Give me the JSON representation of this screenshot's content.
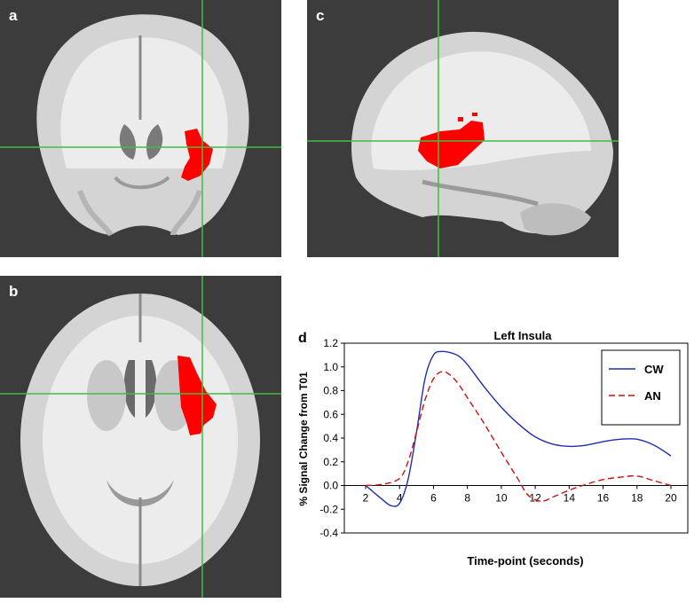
{
  "panels": {
    "a": {
      "label": "a"
    },
    "b": {
      "label": "b"
    },
    "c": {
      "label": "c"
    },
    "d": {
      "label": "d"
    }
  },
  "colors": {
    "background": "#3c3c3c",
    "crosshair": "#3fbf3f",
    "activation": "#ff0000",
    "cw_line": "#1f2fb0",
    "an_line": "#d01010"
  },
  "chart_data": {
    "type": "line",
    "title": "Left Insula",
    "xlabel": "Time-point (seconds)",
    "ylabel": "% Signal Change from T01",
    "xlim": [
      2,
      20
    ],
    "ylim": [
      -0.4,
      1.2
    ],
    "x_ticks": [
      2,
      4,
      6,
      8,
      10,
      12,
      14,
      16,
      18,
      20
    ],
    "y_ticks": [
      -0.4,
      -0.2,
      0.0,
      0.2,
      0.4,
      0.6,
      0.8,
      1.0,
      1.2
    ],
    "y_tick_labels": [
      "-0.4",
      "-0.2",
      "0.0",
      "0.2",
      "0.4",
      "0.6",
      "0.8",
      "1.0",
      "1.2"
    ],
    "legend_position": "top-right",
    "grid": false,
    "series": [
      {
        "name": "CW",
        "style": "solid",
        "x": [
          2,
          3,
          3.5,
          4,
          4.5,
          5,
          5.5,
          6,
          6.5,
          7,
          7.5,
          8,
          9,
          10,
          11,
          12,
          13,
          14,
          15,
          16,
          17,
          18,
          19,
          20
        ],
        "y": [
          0.0,
          -0.12,
          -0.17,
          -0.15,
          0.05,
          0.45,
          0.9,
          1.1,
          1.13,
          1.12,
          1.09,
          1.02,
          0.83,
          0.66,
          0.52,
          0.41,
          0.35,
          0.33,
          0.34,
          0.37,
          0.39,
          0.39,
          0.34,
          0.25
        ]
      },
      {
        "name": "AN",
        "style": "dashed",
        "x": [
          2,
          3,
          4,
          4.5,
          5,
          5.5,
          6,
          6.5,
          7,
          7.5,
          8,
          9,
          10,
          11,
          11.5,
          12,
          12.5,
          13,
          14,
          15,
          16,
          17,
          18,
          19,
          20
        ],
        "y": [
          0.0,
          0.01,
          0.06,
          0.2,
          0.45,
          0.72,
          0.9,
          0.96,
          0.93,
          0.85,
          0.74,
          0.52,
          0.28,
          0.05,
          -0.07,
          -0.12,
          -0.13,
          -0.1,
          -0.04,
          0.01,
          0.05,
          0.07,
          0.08,
          0.04,
          0.0
        ]
      }
    ]
  }
}
